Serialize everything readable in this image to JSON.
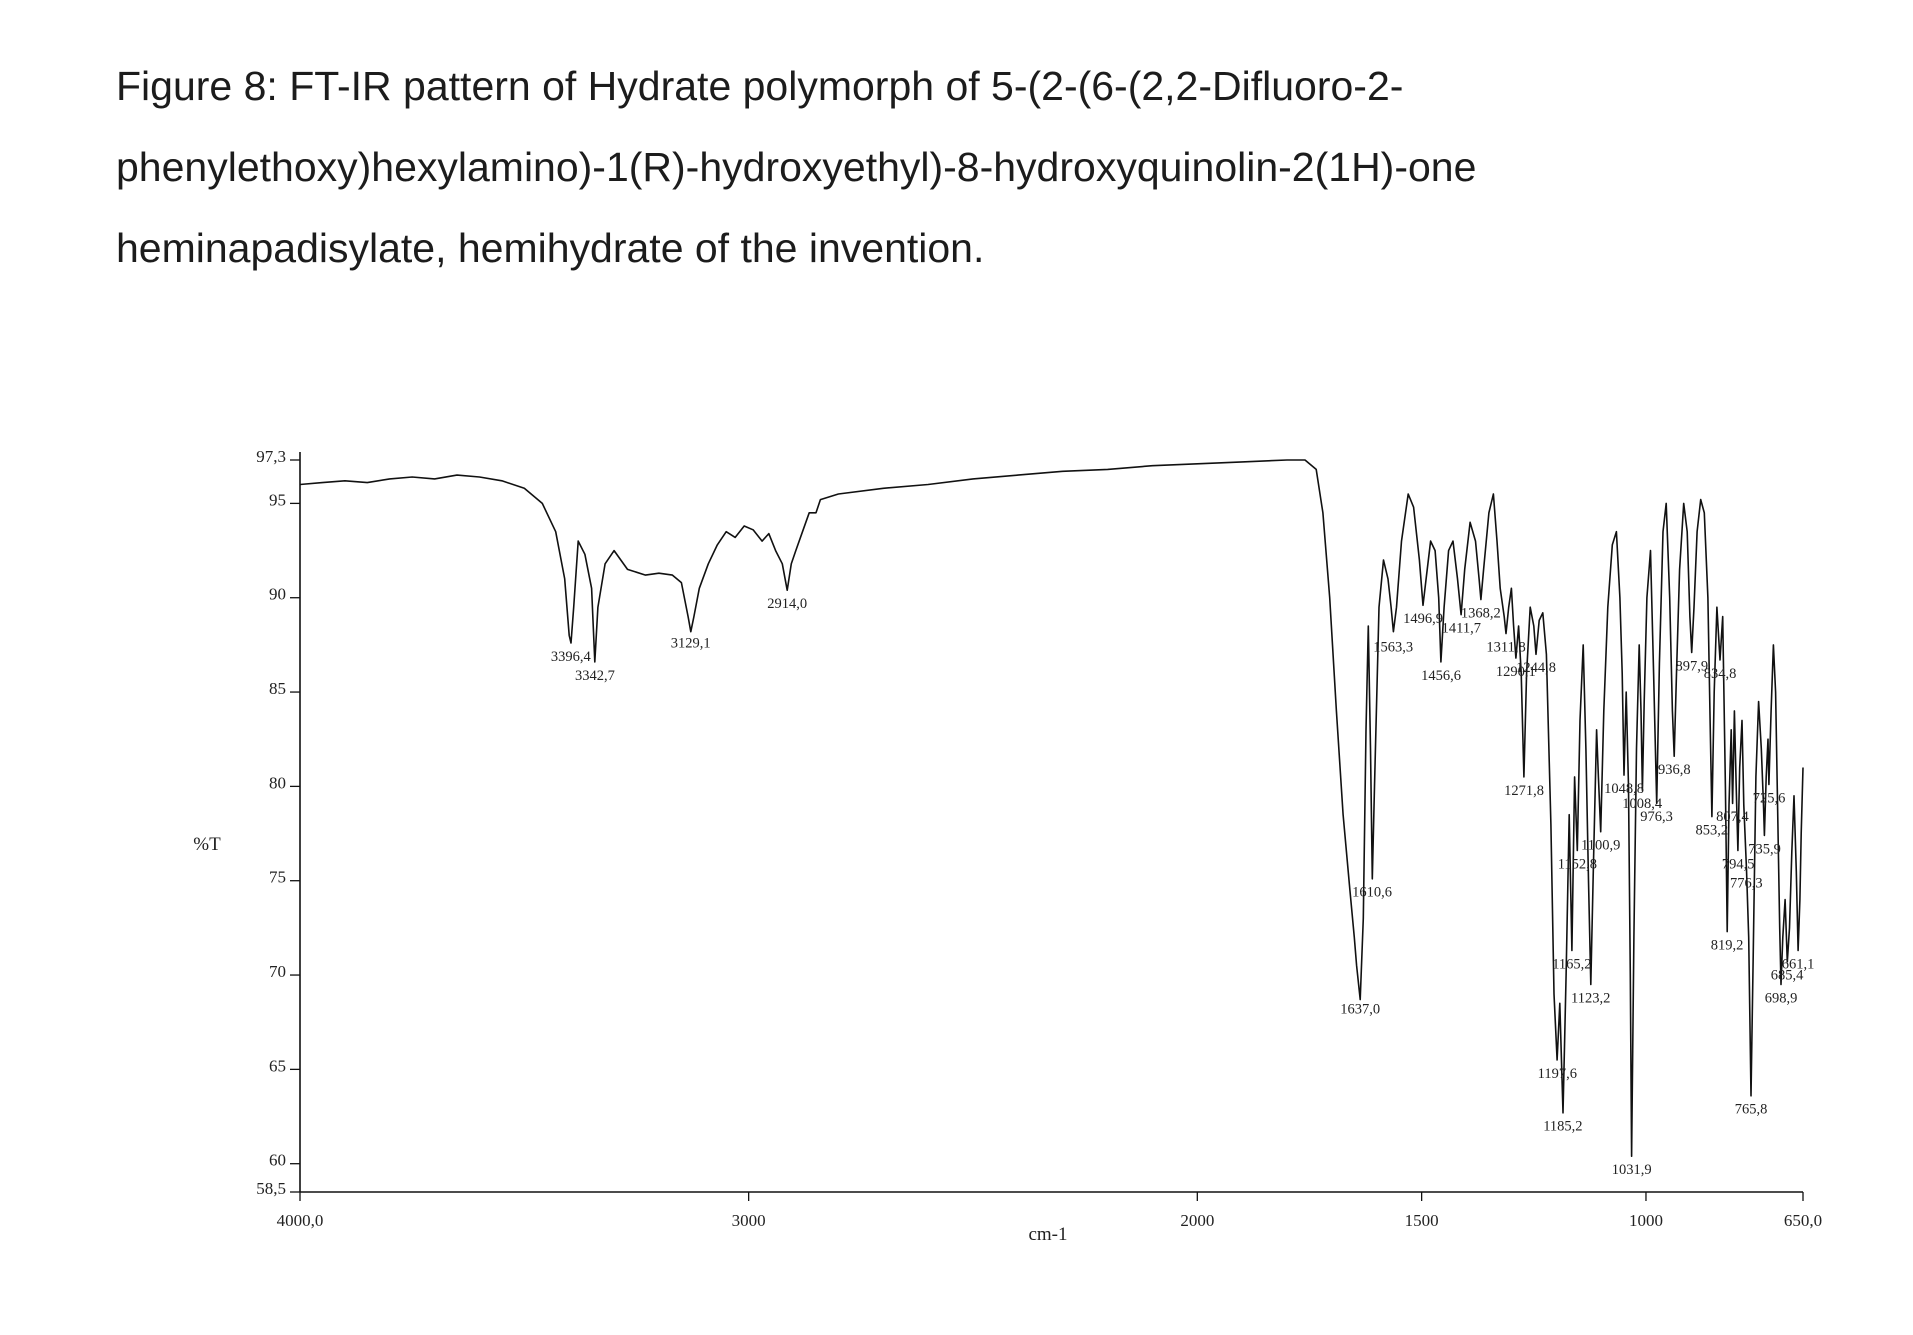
{
  "caption": {
    "line1": "Figure 8: FT-IR pattern of Hydrate polymorph of 5-(2-(6-(2,2-Difluoro-2-",
    "line2": "phenylethoxy)hexylamino)-1(R)-hydroxyethyl)-8-hydroxyquinolin-2(1H)-one",
    "line3": "heminapadisylate, hemihydrate of the invention."
  },
  "chart_data": {
    "type": "line",
    "xlabel": "cm-1",
    "ylabel": "%T",
    "xlim": [
      4000,
      650
    ],
    "x_reversed": true,
    "ylim": [
      58.5,
      97.3
    ],
    "y_ticks": [
      {
        "value": 97.3,
        "label": "97,3"
      },
      {
        "value": 95,
        "label": "95"
      },
      {
        "value": 90,
        "label": "90"
      },
      {
        "value": 85,
        "label": "85"
      },
      {
        "value": 80,
        "label": "80"
      },
      {
        "value": 75,
        "label": "75"
      },
      {
        "value": 70,
        "label": "70"
      },
      {
        "value": 65,
        "label": "65"
      },
      {
        "value": 60,
        "label": "60"
      },
      {
        "value": 58.5,
        "label": "58,5"
      }
    ],
    "x_ticks": [
      {
        "value": 4000,
        "label": "4000,0"
      },
      {
        "value": 3000,
        "label": "3000"
      },
      {
        "value": 2000,
        "label": "2000"
      },
      {
        "value": 1500,
        "label": "1500"
      },
      {
        "value": 1000,
        "label": "1000"
      },
      {
        "value": 650,
        "label": "650,0"
      }
    ],
    "grid": false,
    "line_color": "#111111",
    "peaks": [
      {
        "label": "3396,4",
        "x": 3396.4,
        "y": 87.5
      },
      {
        "label": "3342,7",
        "x": 3342.7,
        "y": 86.5
      },
      {
        "label": "3129,1",
        "x": 3129.1,
        "y": 88.2
      },
      {
        "label": "2914,0",
        "x": 2914.0,
        "y": 90.3
      },
      {
        "label": "1637,0",
        "x": 1637.0,
        "y": 68.8
      },
      {
        "label": "1610,6",
        "x": 1610.6,
        "y": 75.0
      },
      {
        "label": "1563,3",
        "x": 1563.3,
        "y": 88.0
      },
      {
        "label": "1496,9",
        "x": 1496.9,
        "y": 89.5
      },
      {
        "label": "1456,6",
        "x": 1456.6,
        "y": 86.5
      },
      {
        "label": "1411,7",
        "x": 1411.7,
        "y": 89.0
      },
      {
        "label": "1368,2",
        "x": 1368.2,
        "y": 89.8
      },
      {
        "label": "1311,8",
        "x": 1311.8,
        "y": 88.0
      },
      {
        "label": "1290,1",
        "x": 1290.1,
        "y": 86.7
      },
      {
        "label": "1271,8",
        "x": 1271.8,
        "y": 80.4
      },
      {
        "label": "1244,8",
        "x": 1244.8,
        "y": 86.9
      },
      {
        "label": "1197,6",
        "x": 1197.6,
        "y": 65.4
      },
      {
        "label": "1185,2",
        "x": 1185.2,
        "y": 62.6
      },
      {
        "label": "1165,2",
        "x": 1165.2,
        "y": 71.2
      },
      {
        "label": "1152,8",
        "x": 1152.8,
        "y": 76.5
      },
      {
        "label": "1123,2",
        "x": 1123.2,
        "y": 69.4
      },
      {
        "label": "1100,9",
        "x": 1100.9,
        "y": 77.5
      },
      {
        "label": "1048,8",
        "x": 1048.8,
        "y": 80.5
      },
      {
        "label": "1031,9",
        "x": 1031.9,
        "y": 60.3
      },
      {
        "label": "1008,4",
        "x": 1008.4,
        "y": 79.7
      },
      {
        "label": "976,3",
        "x": 976.3,
        "y": 79.0
      },
      {
        "label": "936,8",
        "x": 936.8,
        "y": 81.5
      },
      {
        "label": "897,9",
        "x": 897.9,
        "y": 87.0
      },
      {
        "label": "853,2",
        "x": 853.2,
        "y": 78.3
      },
      {
        "label": "834,8",
        "x": 834.8,
        "y": 86.6
      },
      {
        "label": "819,2",
        "x": 819.2,
        "y": 72.2
      },
      {
        "label": "807,4",
        "x": 807.4,
        "y": 79.0
      },
      {
        "label": "794,5",
        "x": 794.5,
        "y": 76.5
      },
      {
        "label": "776,3",
        "x": 776.3,
        "y": 75.5
      },
      {
        "label": "765,8",
        "x": 765.8,
        "y": 63.5
      },
      {
        "label": "735,9",
        "x": 735.9,
        "y": 77.3
      },
      {
        "label": "725,6",
        "x": 725.6,
        "y": 80.0
      },
      {
        "label": "698,9",
        "x": 698.9,
        "y": 69.4
      },
      {
        "label": "685,4",
        "x": 685.4,
        "y": 70.6
      },
      {
        "label": "661,1",
        "x": 661.1,
        "y": 71.2
      }
    ],
    "spectrum": [
      [
        4000,
        96.0
      ],
      [
        3950,
        96.1
      ],
      [
        3900,
        96.2
      ],
      [
        3850,
        96.1
      ],
      [
        3800,
        96.3
      ],
      [
        3750,
        96.4
      ],
      [
        3700,
        96.3
      ],
      [
        3650,
        96.5
      ],
      [
        3600,
        96.4
      ],
      [
        3550,
        96.2
      ],
      [
        3500,
        95.8
      ],
      [
        3460,
        95.0
      ],
      [
        3430,
        93.5
      ],
      [
        3410,
        91.0
      ],
      [
        3400,
        88.0
      ],
      [
        3396,
        87.6
      ],
      [
        3390,
        89.5
      ],
      [
        3380,
        93.0
      ],
      [
        3365,
        92.3
      ],
      [
        3350,
        90.5
      ],
      [
        3343,
        86.6
      ],
      [
        3336,
        89.5
      ],
      [
        3320,
        91.8
      ],
      [
        3300,
        92.5
      ],
      [
        3270,
        91.5
      ],
      [
        3230,
        91.2
      ],
      [
        3200,
        91.3
      ],
      [
        3170,
        91.2
      ],
      [
        3150,
        90.8
      ],
      [
        3135,
        89.0
      ],
      [
        3129,
        88.2
      ],
      [
        3122,
        89.0
      ],
      [
        3110,
        90.5
      ],
      [
        3090,
        91.8
      ],
      [
        3070,
        92.8
      ],
      [
        3050,
        93.5
      ],
      [
        3030,
        93.2
      ],
      [
        3010,
        93.8
      ],
      [
        2990,
        93.6
      ],
      [
        2970,
        93.0
      ],
      [
        2955,
        93.4
      ],
      [
        2940,
        92.5
      ],
      [
        2925,
        91.8
      ],
      [
        2914,
        90.4
      ],
      [
        2905,
        91.8
      ],
      [
        2895,
        92.5
      ],
      [
        2880,
        93.5
      ],
      [
        2865,
        94.5
      ],
      [
        2850,
        94.5
      ],
      [
        2840,
        95.2
      ],
      [
        2800,
        95.5
      ],
      [
        2700,
        95.8
      ],
      [
        2600,
        96.0
      ],
      [
        2500,
        96.3
      ],
      [
        2400,
        96.5
      ],
      [
        2300,
        96.7
      ],
      [
        2200,
        96.8
      ],
      [
        2100,
        97.0
      ],
      [
        2000,
        97.1
      ],
      [
        1900,
        97.2
      ],
      [
        1800,
        97.3
      ],
      [
        1760,
        97.3
      ],
      [
        1735,
        96.8
      ],
      [
        1720,
        94.5
      ],
      [
        1705,
        90.0
      ],
      [
        1690,
        84.0
      ],
      [
        1675,
        78.5
      ],
      [
        1660,
        74.5
      ],
      [
        1650,
        72.0
      ],
      [
        1645,
        70.5
      ],
      [
        1637,
        68.7
      ],
      [
        1630,
        73.0
      ],
      [
        1624,
        83.0
      ],
      [
        1619,
        88.5
      ],
      [
        1614,
        82.0
      ],
      [
        1610,
        75.1
      ],
      [
        1605,
        80.0
      ],
      [
        1595,
        89.5
      ],
      [
        1585,
        92.0
      ],
      [
        1575,
        91.0
      ],
      [
        1568,
        89.5
      ],
      [
        1563,
        88.2
      ],
      [
        1556,
        89.5
      ],
      [
        1545,
        93.0
      ],
      [
        1530,
        95.5
      ],
      [
        1518,
        94.8
      ],
      [
        1505,
        92.0
      ],
      [
        1497,
        89.6
      ],
      [
        1490,
        91.0
      ],
      [
        1480,
        93.0
      ],
      [
        1470,
        92.5
      ],
      [
        1462,
        90.0
      ],
      [
        1457,
        86.6
      ],
      [
        1450,
        89.5
      ],
      [
        1440,
        92.5
      ],
      [
        1430,
        93.0
      ],
      [
        1420,
        91.0
      ],
      [
        1412,
        89.1
      ],
      [
        1404,
        91.5
      ],
      [
        1392,
        94.0
      ],
      [
        1380,
        93.0
      ],
      [
        1372,
        91.0
      ],
      [
        1368,
        89.9
      ],
      [
        1362,
        91.5
      ],
      [
        1350,
        94.5
      ],
      [
        1340,
        95.5
      ],
      [
        1332,
        93.0
      ],
      [
        1325,
        90.5
      ],
      [
        1316,
        89.0
      ],
      [
        1312,
        88.1
      ],
      [
        1306,
        89.5
      ],
      [
        1300,
        90.5
      ],
      [
        1295,
        88.5
      ],
      [
        1290,
        86.8
      ],
      [
        1284,
        88.5
      ],
      [
        1278,
        86.0
      ],
      [
        1272,
        80.5
      ],
      [
        1266,
        86.0
      ],
      [
        1258,
        89.5
      ],
      [
        1250,
        88.5
      ],
      [
        1245,
        87.0
      ],
      [
        1238,
        88.8
      ],
      [
        1230,
        89.2
      ],
      [
        1222,
        87.0
      ],
      [
        1212,
        78.0
      ],
      [
        1205,
        69.0
      ],
      [
        1198,
        65.5
      ],
      [
        1192,
        68.5
      ],
      [
        1185,
        62.7
      ],
      [
        1178,
        70.0
      ],
      [
        1171,
        78.5
      ],
      [
        1165,
        71.3
      ],
      [
        1159,
        80.5
      ],
      [
        1153,
        76.6
      ],
      [
        1147,
        83.5
      ],
      [
        1140,
        87.5
      ],
      [
        1134,
        82.0
      ],
      [
        1128,
        75.0
      ],
      [
        1123,
        69.5
      ],
      [
        1117,
        76.0
      ],
      [
        1110,
        83.0
      ],
      [
        1106,
        80.5
      ],
      [
        1101,
        77.6
      ],
      [
        1094,
        84.0
      ],
      [
        1085,
        89.5
      ],
      [
        1075,
        92.8
      ],
      [
        1066,
        93.5
      ],
      [
        1058,
        90.0
      ],
      [
        1053,
        86.0
      ],
      [
        1049,
        80.6
      ],
      [
        1044,
        85.0
      ],
      [
        1039,
        80.0
      ],
      [
        1035,
        70.0
      ],
      [
        1032,
        60.4
      ],
      [
        1027,
        72.0
      ],
      [
        1021,
        82.0
      ],
      [
        1015,
        87.5
      ],
      [
        1011,
        84.0
      ],
      [
        1008,
        79.8
      ],
      [
        1004,
        84.5
      ],
      [
        998,
        90.0
      ],
      [
        990,
        92.5
      ],
      [
        983,
        86.0
      ],
      [
        976,
        79.1
      ],
      [
        970,
        86.5
      ],
      [
        962,
        93.5
      ],
      [
        955,
        95.0
      ],
      [
        947,
        90.0
      ],
      [
        941,
        84.0
      ],
      [
        937,
        81.6
      ],
      [
        932,
        86.0
      ],
      [
        925,
        91.5
      ],
      [
        916,
        95.0
      ],
      [
        908,
        93.5
      ],
      [
        902,
        89.0
      ],
      [
        898,
        87.1
      ],
      [
        893,
        89.5
      ],
      [
        886,
        93.5
      ],
      [
        878,
        95.2
      ],
      [
        870,
        94.5
      ],
      [
        862,
        90.0
      ],
      [
        857,
        83.5
      ],
      [
        853,
        78.4
      ],
      [
        848,
        85.0
      ],
      [
        842,
        89.5
      ],
      [
        835,
        86.7
      ],
      [
        829,
        89.0
      ],
      [
        823,
        80.0
      ],
      [
        819,
        72.3
      ],
      [
        815,
        79.0
      ],
      [
        810,
        83.0
      ],
      [
        807,
        79.1
      ],
      [
        803,
        84.0
      ],
      [
        799,
        80.0
      ],
      [
        795,
        76.6
      ],
      [
        791,
        81.0
      ],
      [
        786,
        83.5
      ],
      [
        782,
        79.0
      ],
      [
        776,
        75.6
      ],
      [
        771,
        72.0
      ],
      [
        766,
        63.6
      ],
      [
        761,
        71.0
      ],
      [
        755,
        80.5
      ],
      [
        749,
        84.5
      ],
      [
        743,
        82.0
      ],
      [
        738,
        79.0
      ],
      [
        736,
        77.4
      ],
      [
        732,
        80.5
      ],
      [
        728,
        82.5
      ],
      [
        726,
        80.1
      ],
      [
        721,
        84.0
      ],
      [
        716,
        87.5
      ],
      [
        711,
        85.0
      ],
      [
        706,
        78.0
      ],
      [
        702,
        72.5
      ],
      [
        699,
        69.5
      ],
      [
        695,
        72.0
      ],
      [
        690,
        74.0
      ],
      [
        685,
        70.7
      ],
      [
        680,
        72.5
      ],
      [
        675,
        76.5
      ],
      [
        670,
        79.5
      ],
      [
        665,
        75.5
      ],
      [
        661,
        71.3
      ],
      [
        657,
        74.0
      ],
      [
        654,
        77.5
      ],
      [
        650,
        81.0
      ]
    ]
  }
}
